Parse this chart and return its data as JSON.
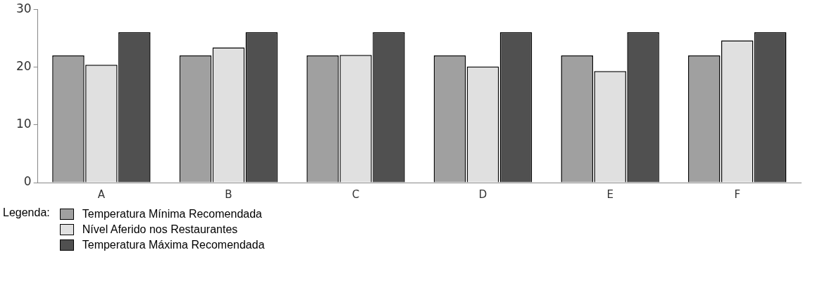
{
  "chart_data": {
    "type": "bar",
    "categories": [
      "A",
      "B",
      "C",
      "D",
      "E",
      "F"
    ],
    "series": [
      {
        "name": "Temperatura Mínima Recomendada",
        "color": "#a0a0a0",
        "values": [
          22,
          22,
          22,
          22,
          22,
          22
        ]
      },
      {
        "name": "Nível Aferido nos Restaurantes",
        "color": "#e0e0e0",
        "values": [
          20.4,
          23.4,
          22.1,
          20.1,
          19.3,
          24.6
        ]
      },
      {
        "name": "Temperatura Máxima Recomendada",
        "color": "#505050",
        "values": [
          26,
          26,
          26,
          26,
          26,
          26
        ]
      }
    ],
    "ylim": [
      0,
      30
    ],
    "yticks": [
      0,
      10,
      20,
      30
    ],
    "grid": false,
    "legend": "bottom left",
    "legend_title": "Legenda:"
  }
}
